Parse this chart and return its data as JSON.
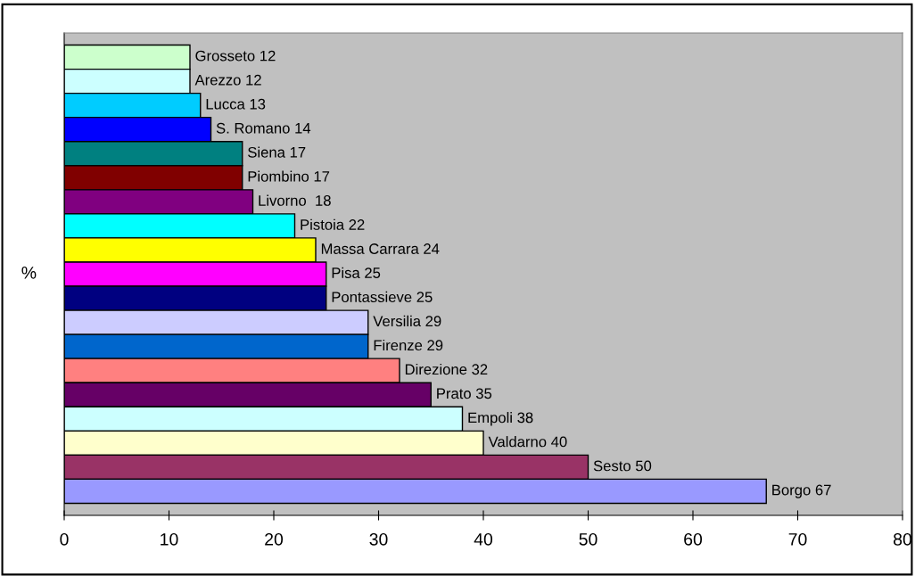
{
  "chart_data": {
    "type": "bar",
    "orientation": "horizontal",
    "ylabel": "%",
    "categories": [
      null,
      null,
      null,
      null,
      null,
      null,
      null,
      null,
      null,
      null,
      null,
      null,
      null,
      null,
      null,
      null,
      null,
      null,
      null
    ],
    "values": [
      12,
      12,
      13,
      14,
      17,
      17,
      18,
      22,
      24,
      25,
      25,
      29,
      29,
      32,
      35,
      38,
      40,
      50,
      67
    ],
    "colors": [
      "#ccffcc",
      "#ccffff",
      "#00ccff",
      "#0000ff",
      "#008080",
      "#800000",
      "#800080",
      "#00ffff",
      "#ffff00",
      "#ff00ff",
      "#000080",
      "#ccccff",
      "#0066cc",
      "#ff8080",
      "#660066",
      "#ccffff",
      "#ffffcc",
      "#993366",
      "#9999ff"
    ],
    "value_labels": [
      "Grosseto 12",
      "Arezzo 12",
      "Lucca 13",
      "S. Romano 14",
      "Siena 17",
      "Piombino 17",
      "Livorno  18",
      "Pistoia 22",
      "Massa Carrara 24",
      "Pisa 25",
      "Pontassieve 25",
      "Versilia 29",
      "Firenze 29",
      "Direzione 32",
      "Prato 35",
      "Empoli 38",
      "Valdarno 40",
      "Sesto 50",
      "Borgo 67"
    ],
    "xlim": [
      0,
      80
    ],
    "xticks": [
      0,
      10,
      20,
      30,
      40,
      50,
      60,
      70,
      80
    ],
    "grid": false,
    "legend": false
  }
}
